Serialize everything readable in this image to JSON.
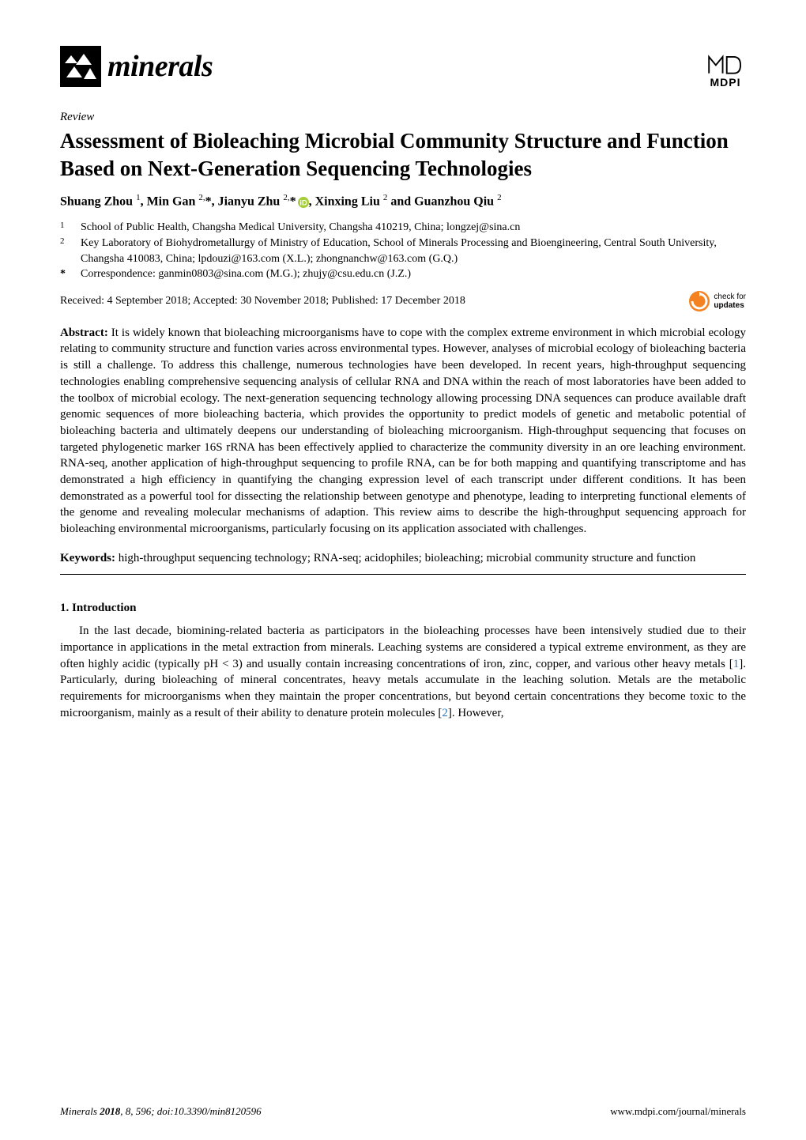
{
  "journal": {
    "name": "minerals",
    "publisher": "MDPI"
  },
  "article": {
    "type": "Review",
    "title": "Assessment of Bioleaching Microbial Community Structure and Function Based on Next-Generation Sequencing Technologies",
    "authors_html": "Shuang Zhou <sup>1</sup>, Min Gan <sup>2,</sup>*, Jianyu Zhu <sup>2,</sup>*<span class=\"orcid\"><svg viewBox=\"0 0 16 16\"><circle cx=\"8\" cy=\"8\" r=\"8\" fill=\"#a6ce39\"/><text x=\"8\" y=\"12\" font-size=\"11\" text-anchor=\"middle\" fill=\"#fff\" font-family=\"Arial\" font-weight=\"bold\">iD</text></svg></span>, Xinxing Liu <sup>2</sup> and Guanzhou Qiu <sup>2</sup>",
    "affiliations": [
      {
        "num": "1",
        "text": "School of Public Health, Changsha Medical University, Changsha 410219, China; longzej@sina.cn"
      },
      {
        "num": "2",
        "text": "Key Laboratory of Biohydrometallurgy of Ministry of Education, School of Minerals Processing and Bioengineering, Central South University, Changsha 410083, China; lpdouzi@163.com (X.L.); zhongnanchw@163.com (G.Q.)"
      }
    ],
    "corresponding": {
      "mark": "*",
      "text": "Correspondence: ganmin0803@sina.com (M.G.); zhujy@csu.edu.cn (J.Z.)"
    },
    "dates": "Received: 4 September 2018; Accepted: 30 November 2018; Published: 17 December 2018",
    "check_updates_line1": "check for",
    "check_updates_line2": "updates",
    "abstract_label": "Abstract:",
    "abstract": "It is widely known that bioleaching microorganisms have to cope with the complex extreme environment in which microbial ecology relating to community structure and function varies across environmental types. However, analyses of microbial ecology of bioleaching bacteria is still a challenge. To address this challenge, numerous technologies have been developed. In recent years, high-throughput sequencing technologies enabling comprehensive sequencing analysis of cellular RNA and DNA within the reach of most laboratories have been added to the toolbox of microbial ecology. The next-generation sequencing technology allowing processing DNA sequences can produce available draft genomic sequences of more bioleaching bacteria, which provides the opportunity to predict models of genetic and metabolic potential of bioleaching bacteria and ultimately deepens our understanding of bioleaching microorganism. High-throughput sequencing that focuses on targeted phylogenetic marker 16S rRNA has been effectively applied to characterize the community diversity in an ore leaching environment. RNA-seq, another application of high-throughput sequencing to profile RNA, can be for both mapping and quantifying transcriptome and has demonstrated a high efficiency in quantifying the changing expression level of each transcript under different conditions. It has been demonstrated as a powerful tool for dissecting the relationship between genotype and phenotype, leading to interpreting functional elements of the genome and revealing molecular mechanisms of adaption. This review aims to describe the high-throughput sequencing approach for bioleaching environmental microorganisms, particularly focusing on its application associated with challenges.",
    "keywords_label": "Keywords:",
    "keywords": "high-throughput sequencing technology; RNA-seq; acidophiles; bioleaching; microbial community structure and function",
    "section1_heading": "1. Introduction",
    "section1_body_html": "In the last decade, biomining-related bacteria as participators in the bioleaching processes have been intensively studied due to their importance in applications in the metal extraction from minerals. Leaching systems are considered a typical extreme environment, as they are often highly acidic (typically pH &lt; 3) and usually contain increasing concentrations of iron, zinc, copper, and various other heavy metals [<span class=\"ref-link\">1</span>]. Particularly, during bioleaching of mineral concentrates, heavy metals accumulate in the leaching solution. Metals are the metabolic requirements for microorganisms when they maintain the proper concentrations, but beyond certain concentrations they become toxic to the microorganism, mainly as a result of their ability to denature protein molecules [<span class=\"ref-link\">2</span>]. However,"
  },
  "footer": {
    "citation_html": "<span class=\"footer-left\"><i>Minerals</i> <b>2018</b>, <i>8</i>, 596; doi:10.3390/min8120596</span>",
    "url": "www.mdpi.com/journal/minerals"
  },
  "colors": {
    "text": "#000000",
    "background": "#ffffff",
    "ref_link": "#2e75b6",
    "orcid_green": "#a6ce39",
    "check_orange": "#f58220"
  }
}
